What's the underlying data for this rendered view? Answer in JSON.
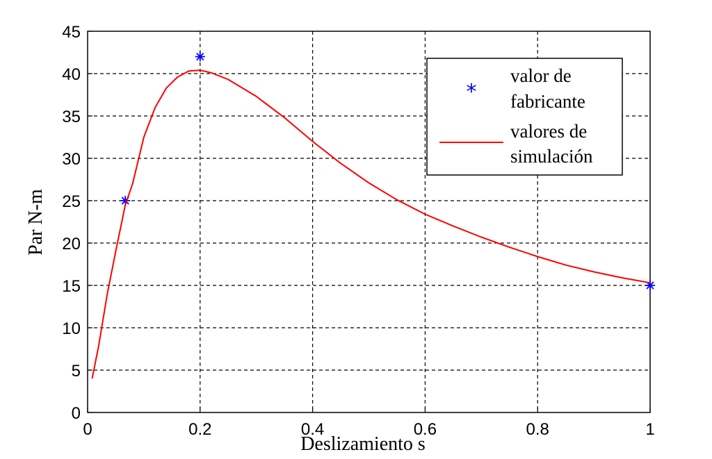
{
  "chart_data": {
    "type": "line",
    "title": "",
    "xlabel": "Deslizamiento s",
    "ylabel": "Par N-m",
    "xlim": [
      0,
      1
    ],
    "ylim": [
      0,
      45
    ],
    "xticks": [
      0,
      0.2,
      0.4,
      0.6,
      0.8,
      1
    ],
    "xtick_labels": [
      "0",
      "0.2",
      "0.4",
      "0.6",
      "0.8",
      "1"
    ],
    "yticks": [
      0,
      5,
      10,
      15,
      20,
      25,
      30,
      35,
      40,
      45
    ],
    "ytick_labels": [
      "0",
      "5",
      "10",
      "15",
      "20",
      "25",
      "30",
      "35",
      "40",
      "45"
    ],
    "grid": true,
    "legend_position": "top-right",
    "series": [
      {
        "name_lines": [
          "valor de",
          "fabricante"
        ],
        "style": "marker-star",
        "color": "#0000ff",
        "points": [
          [
            0.067,
            25
          ],
          [
            0.2,
            42
          ],
          [
            1.0,
            15
          ]
        ]
      },
      {
        "name_lines": [
          "valores de",
          "simulación"
        ],
        "style": "line",
        "color": "#ff0000",
        "points": [
          [
            0.008,
            4
          ],
          [
            0.02,
            8
          ],
          [
            0.035,
            14
          ],
          [
            0.05,
            19
          ],
          [
            0.067,
            24.5
          ],
          [
            0.08,
            27
          ],
          [
            0.1,
            32.5
          ],
          [
            0.12,
            36
          ],
          [
            0.14,
            38.3
          ],
          [
            0.16,
            39.6
          ],
          [
            0.18,
            40.3
          ],
          [
            0.2,
            40.4
          ],
          [
            0.22,
            40.1
          ],
          [
            0.25,
            39.3
          ],
          [
            0.3,
            37.3
          ],
          [
            0.35,
            34.8
          ],
          [
            0.4,
            32
          ],
          [
            0.45,
            29.4
          ],
          [
            0.5,
            27.1
          ],
          [
            0.55,
            25.1
          ],
          [
            0.6,
            23.4
          ],
          [
            0.65,
            22
          ],
          [
            0.7,
            20.7
          ],
          [
            0.75,
            19.5
          ],
          [
            0.8,
            18.4
          ],
          [
            0.85,
            17.4
          ],
          [
            0.9,
            16.6
          ],
          [
            0.95,
            15.9
          ],
          [
            1.0,
            15.3
          ]
        ]
      }
    ]
  }
}
